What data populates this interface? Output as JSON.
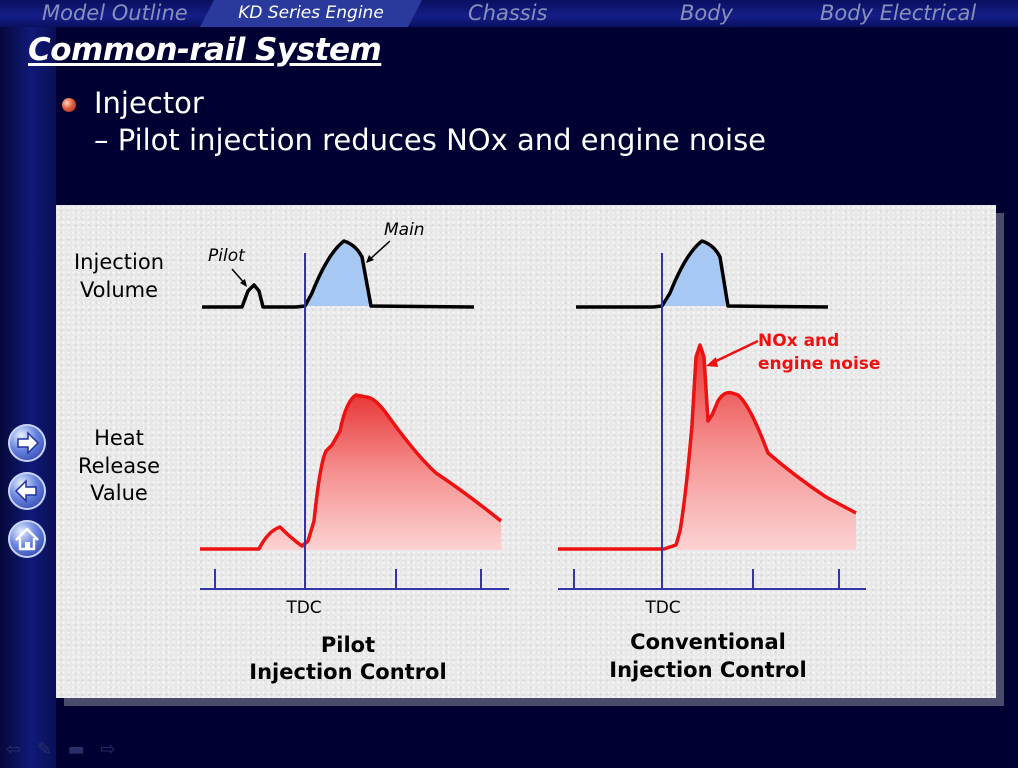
{
  "nav_tabs": [
    {
      "label": "Model Outline",
      "active": false
    },
    {
      "label": "KD Series Engine",
      "active": true
    },
    {
      "label": "Chassis",
      "active": false
    },
    {
      "label": "Body",
      "active": false
    },
    {
      "label": "Body Electrical",
      "active": false
    }
  ],
  "slide_title": "Common-rail System",
  "bullets": {
    "level1": "Injector",
    "level2": "– Pilot injection reduces NOx and engine noise"
  },
  "diagram": {
    "row_label_injection": [
      "Injection",
      "Volume"
    ],
    "row_label_heat": [
      "Heat",
      "Release",
      "Value"
    ],
    "pilot_label": "Pilot",
    "main_label": "Main",
    "nox_label": [
      "NOx and",
      "engine noise"
    ],
    "tdc_label": "TDC",
    "caption_left": [
      "Pilot",
      "Injection Control"
    ],
    "caption_right": [
      "Conventional",
      "Injection Control"
    ],
    "colors": {
      "curve": "#000000",
      "fill_injection": "#a8c8f4",
      "heat_curve": "#ee1111",
      "tdc_line": "#3333aa",
      "nox_text": "#ee1111"
    }
  },
  "side_nav": [
    "next-arrow-icon",
    "back-arrow-icon",
    "home-icon"
  ],
  "footer_icons": [
    "prev-icon",
    "pen-icon",
    "screen-icon",
    "next-icon"
  ]
}
